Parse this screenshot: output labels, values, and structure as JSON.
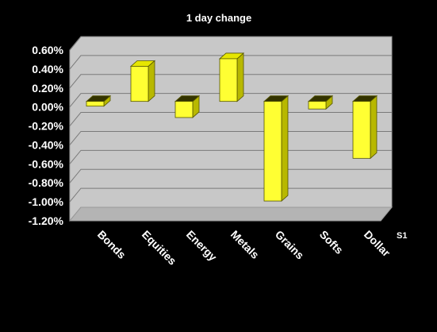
{
  "chart_data": {
    "type": "bar",
    "title": "1 day change",
    "categories": [
      "Bonds",
      "Equities",
      "Energy",
      "Metals",
      "Grains",
      "Softs",
      "Dollar"
    ],
    "series": [
      {
        "name": "S1",
        "values": [
          -0.05,
          0.37,
          -0.17,
          0.45,
          -1.05,
          -0.08,
          -0.6
        ]
      }
    ],
    "ylim": [
      -1.2,
      0.6
    ],
    "ytick_labels": [
      "0.60%",
      "0.40%",
      "0.20%",
      "0.00%",
      "-0.20%",
      "-0.40%",
      "-0.60%",
      "-0.80%",
      "-1.00%",
      "-1.20%"
    ],
    "grid": true,
    "legend": "right",
    "colors": {
      "background": "#000000",
      "wall": "#c8c8c8",
      "floor": "#b4b4b4",
      "bar_front": "#ffff33",
      "bar_side": "#b8b800",
      "bar_top": "#e6e600",
      "text": "#ffffff"
    }
  }
}
